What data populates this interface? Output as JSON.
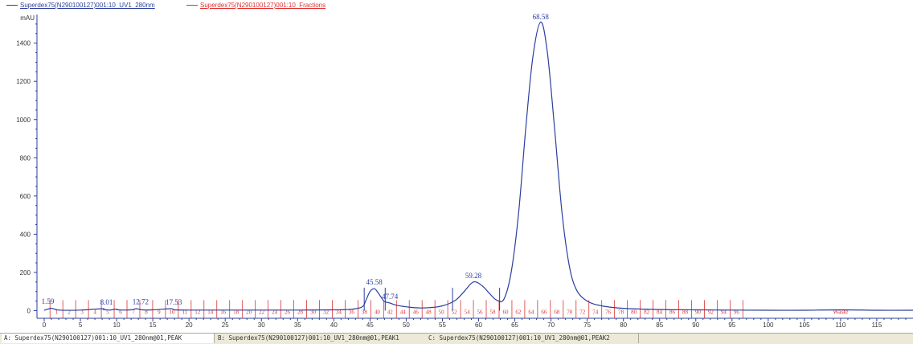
{
  "legend": [
    {
      "name": "Superdex75(N290100127)001:10_UV1_280nm",
      "color": "#2b3f9e"
    },
    {
      "name": "Superdex75(N290100127)001:10_Fractions",
      "color": "#e03030"
    }
  ],
  "tabs": [
    {
      "label": "A: Superdex75(N290100127)001:10_UV1_280nm@01,PEAK",
      "active": true
    },
    {
      "label": "B: Superdex75(N290100127)001:10_UV1_280nm@01,PEAK1",
      "active": false
    },
    {
      "label": "C: Superdex75(N290100127)001:10_UV1_280nm@01,PEAK2",
      "active": false
    }
  ],
  "chart_data": {
    "type": "line",
    "ylabel": "mAU",
    "xlim": [
      -1,
      120
    ],
    "ylim": [
      -40,
      1550
    ],
    "xticks": [
      0,
      5,
      10,
      15,
      20,
      25,
      30,
      35,
      40,
      45,
      50,
      55,
      60,
      65,
      70,
      75,
      80,
      85,
      90,
      95,
      100,
      105,
      110,
      115
    ],
    "yticks": [
      0,
      200,
      400,
      600,
      800,
      1000,
      1200,
      1400
    ],
    "grid": false,
    "series": [
      {
        "name": "Superdex75(N290100127)001:10_UV1_280nm",
        "color": "#2b3f9e",
        "x": [
          0,
          1,
          2,
          5,
          8,
          8.2,
          9,
          10,
          10.2,
          12,
          12.7,
          13.5,
          15,
          17.5,
          18,
          20,
          25,
          30,
          35,
          40,
          42,
          43,
          44,
          44.5,
          45,
          45.58,
          46,
          46.5,
          47,
          47.74,
          48.5,
          50,
          52,
          54,
          55,
          56,
          57,
          58,
          59.28,
          60.5,
          61.5,
          62.5,
          63.5,
          64.5,
          65.5,
          66.5,
          67.5,
          68.58,
          69.5,
          70.5,
          71.5,
          72.5,
          73.5,
          75,
          77,
          80,
          85,
          90,
          95,
          100,
          105,
          110,
          115,
          120
        ],
        "y": [
          2,
          12,
          3,
          3,
          10,
          6,
          3,
          8,
          4,
          4,
          10,
          4,
          4,
          10,
          4,
          3,
          3,
          3,
          3,
          4,
          6,
          10,
          22,
          60,
          100,
          115,
          100,
          72,
          48,
          40,
          30,
          20,
          14,
          18,
          25,
          38,
          60,
          100,
          150,
          130,
          90,
          55,
          60,
          200,
          500,
          950,
          1330,
          1510,
          1350,
          950,
          520,
          240,
          110,
          50,
          25,
          12,
          6,
          4,
          3,
          2,
          2,
          4,
          2,
          2
        ]
      }
    ],
    "peak_labels": [
      {
        "x": 0.5,
        "y": 15,
        "text": "1.59"
      },
      {
        "x": 8.6,
        "y": 10,
        "text": "8.01"
      },
      {
        "x": 13.3,
        "y": 12,
        "text": "12.72"
      },
      {
        "x": 17.9,
        "y": 10,
        "text": "17.53"
      },
      {
        "x": 45.58,
        "y": 115,
        "text": "45.58"
      },
      {
        "x": 47.74,
        "y": 40,
        "text": "47.74"
      },
      {
        "x": 59.28,
        "y": 150,
        "text": "59.28"
      },
      {
        "x": 68.58,
        "y": 1510,
        "text": "68.58"
      }
    ],
    "peak_markers": [
      44.2,
      47.1,
      56.4,
      62.9
    ],
    "fractions": {
      "color": "#e03030",
      "start": 0.8,
      "end": 96.5,
      "labels": [
        "1",
        "2",
        "3",
        "4",
        "5",
        "6",
        "7",
        "8",
        "9",
        "10",
        "11",
        "12",
        "14",
        "16",
        "18",
        "20",
        "22",
        "24",
        "26",
        "28",
        "30",
        "32",
        "34",
        "36",
        "38",
        "40",
        "42",
        "44",
        "46",
        "48",
        "50",
        "52",
        "54",
        "56",
        "58",
        "60",
        "62",
        "64",
        "66",
        "68",
        "70",
        "72",
        "74",
        "76",
        "78",
        "80",
        "82",
        "84",
        "86",
        "88",
        "90",
        "92",
        "94",
        "96"
      ],
      "waste_label": "Waste",
      "waste_x": 110
    }
  }
}
